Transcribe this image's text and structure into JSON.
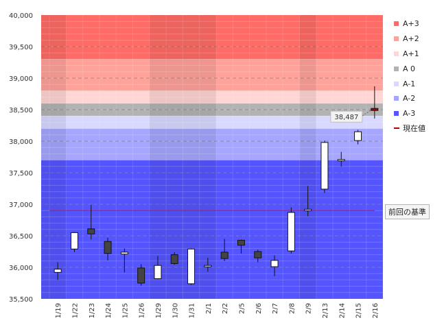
{
  "chart_data": {
    "type": "candlestick",
    "title": "",
    "xlabel": "",
    "ylabel": "",
    "ylim": [
      35500,
      40000
    ],
    "yticks": [
      35500,
      36000,
      36500,
      37000,
      37500,
      38000,
      38500,
      39000,
      39500,
      40000
    ],
    "ytick_labels": [
      "35,500",
      "36,000",
      "36,500",
      "37,000",
      "37,500",
      "38,000",
      "38,500",
      "39,000",
      "39,500",
      "40,000"
    ],
    "categories": [
      "1/19",
      "1/22",
      "1/23",
      "1/24",
      "1/25",
      "1/26",
      "1/29",
      "1/30",
      "1/31",
      "2/1",
      "2/2",
      "2/5",
      "2/6",
      "2/7",
      "2/8",
      "2/9",
      "2/13",
      "2/14",
      "2/15",
      "2/16"
    ],
    "series": [
      {
        "open": 35920,
        "high": 36080,
        "low": 35800,
        "close": 35970
      },
      {
        "open": 36290,
        "high": 36560,
        "low": 36240,
        "close": 36550
      },
      {
        "open": 36610,
        "high": 36990,
        "low": 36440,
        "close": 36530
      },
      {
        "open": 36410,
        "high": 36470,
        "low": 36110,
        "close": 36220
      },
      {
        "open": 36210,
        "high": 36300,
        "low": 35920,
        "close": 36240
      },
      {
        "open": 35990,
        "high": 36050,
        "low": 35710,
        "close": 35750
      },
      {
        "open": 35820,
        "high": 36180,
        "low": 35810,
        "close": 36030
      },
      {
        "open": 36200,
        "high": 36240,
        "low": 36040,
        "close": 36060
      },
      {
        "open": 35740,
        "high": 36300,
        "low": 35720,
        "close": 36290
      },
      {
        "open": 36010,
        "high": 36150,
        "low": 35930,
        "close": 36030
      },
      {
        "open": 36240,
        "high": 36450,
        "low": 36100,
        "close": 36140
      },
      {
        "open": 36430,
        "high": 36440,
        "low": 36220,
        "close": 36350
      },
      {
        "open": 36250,
        "high": 36280,
        "low": 36080,
        "close": 36150
      },
      {
        "open": 36010,
        "high": 36190,
        "low": 35860,
        "close": 36110
      },
      {
        "open": 36260,
        "high": 36950,
        "low": 36220,
        "close": 36870
      },
      {
        "open": 36900,
        "high": 37290,
        "low": 36810,
        "close": 36920
      },
      {
        "open": 37240,
        "high": 38010,
        "low": 37180,
        "close": 37980
      },
      {
        "open": 37700,
        "high": 37830,
        "low": 37600,
        "close": 37710
      },
      {
        "open": 38010,
        "high": 38180,
        "low": 37950,
        "close": 38150
      },
      {
        "open": 38520,
        "high": 38870,
        "low": 38360,
        "close": 38487
      }
    ],
    "prev_base": 36900,
    "current_value": 38487,
    "current_value_label": "38,487",
    "bands": [
      {
        "name": "A+3",
        "from": 39300,
        "to": 40000
      },
      {
        "name": "A+2",
        "from": 38800,
        "to": 39300
      },
      {
        "name": "A+1",
        "from": 38600,
        "to": 38800
      },
      {
        "name": "A 0",
        "from": 38400,
        "to": 38600
      },
      {
        "name": "A-1",
        "from": 38200,
        "to": 38400
      },
      {
        "name": "A-2",
        "from": 37700,
        "to": 38200
      },
      {
        "name": "A-3",
        "from": 35500,
        "to": 37700
      }
    ],
    "legend_position": "right",
    "grid": true
  },
  "colors": {
    "A+3": "#ff6b66",
    "A+2": "#ffa29a",
    "A+1": "#ffd6d3",
    "A 0": "#b3b3b3",
    "A-1": "#d9d9ff",
    "A-2": "#a6a6ff",
    "A-3": "#5555ff",
    "current_value": "#b30000",
    "prev_base_line": "#ff0000"
  },
  "legend": {
    "items": [
      {
        "label": "A+3"
      },
      {
        "label": "A+2"
      },
      {
        "label": "A+1"
      },
      {
        "label": "A 0"
      },
      {
        "label": "A-1"
      },
      {
        "label": "A-2"
      },
      {
        "label": "A-3"
      },
      {
        "label": "現在値"
      }
    ]
  },
  "callout": {
    "label": "前回の基準"
  }
}
